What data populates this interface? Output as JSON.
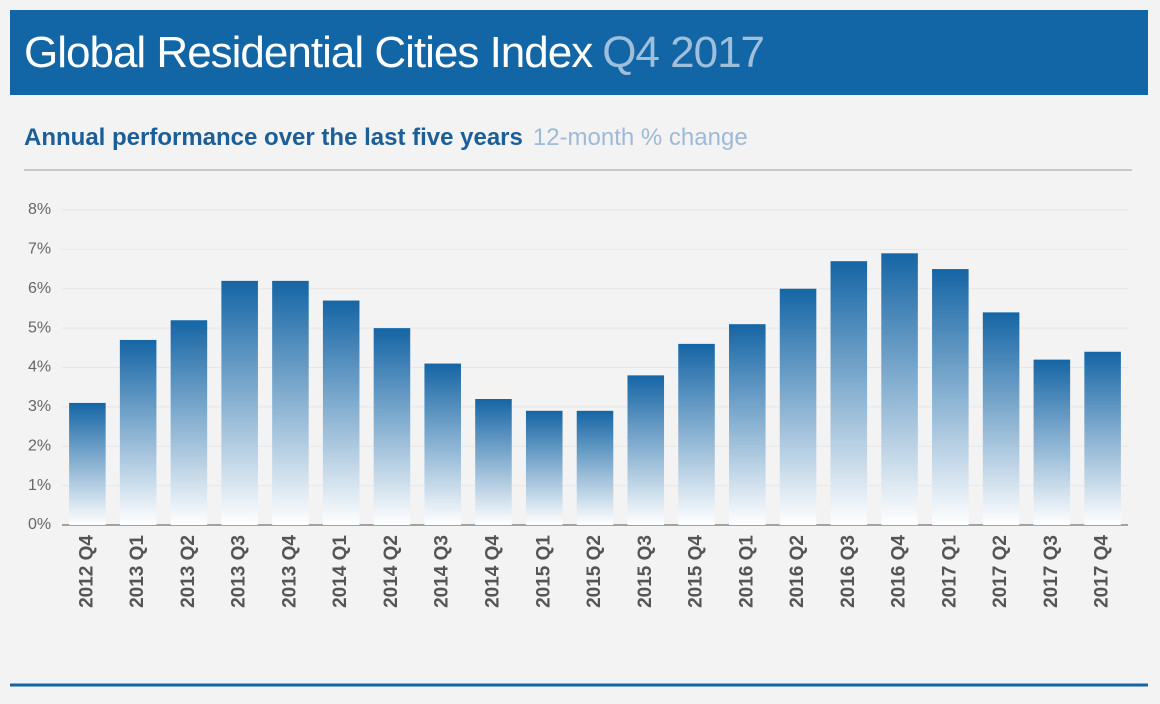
{
  "chart_data": {
    "type": "bar",
    "title": "Global Residential Cities Index",
    "title_suffix": "Q4 2017",
    "subtitle": "Annual performance over the last five years",
    "subtitle_note": "12-month % change",
    "categories": [
      "2012 Q4",
      "2013 Q1",
      "2013 Q2",
      "2013 Q3",
      "2013 Q4",
      "2014 Q1",
      "2014 Q2",
      "2014 Q3",
      "2014 Q4",
      "2015 Q1",
      "2015 Q2",
      "2015 Q3",
      "2015 Q4",
      "2016 Q1",
      "2016 Q2",
      "2016 Q3",
      "2016 Q4",
      "2017 Q1",
      "2017 Q2",
      "2017 Q3",
      "2017 Q4"
    ],
    "values": [
      3.1,
      4.7,
      5.2,
      6.2,
      6.2,
      5.7,
      5.0,
      4.1,
      3.2,
      2.9,
      2.9,
      3.8,
      4.6,
      5.1,
      6.0,
      6.7,
      6.9,
      6.5,
      5.4,
      4.2,
      4.4
    ],
    "color": "#1565a5",
    "ylim": [
      0,
      8
    ],
    "yticks": [
      {
        "value": 0,
        "label": "0%"
      },
      {
        "value": 1,
        "label": "1%"
      },
      {
        "value": 2,
        "label": "2%"
      },
      {
        "value": 3,
        "label": "3%"
      },
      {
        "value": 4,
        "label": "4%"
      },
      {
        "value": 5,
        "label": "5%"
      },
      {
        "value": 6,
        "label": "6%"
      },
      {
        "value": 7,
        "label": "7%"
      },
      {
        "value": 8,
        "label": "8%"
      }
    ],
    "grid": true
  }
}
